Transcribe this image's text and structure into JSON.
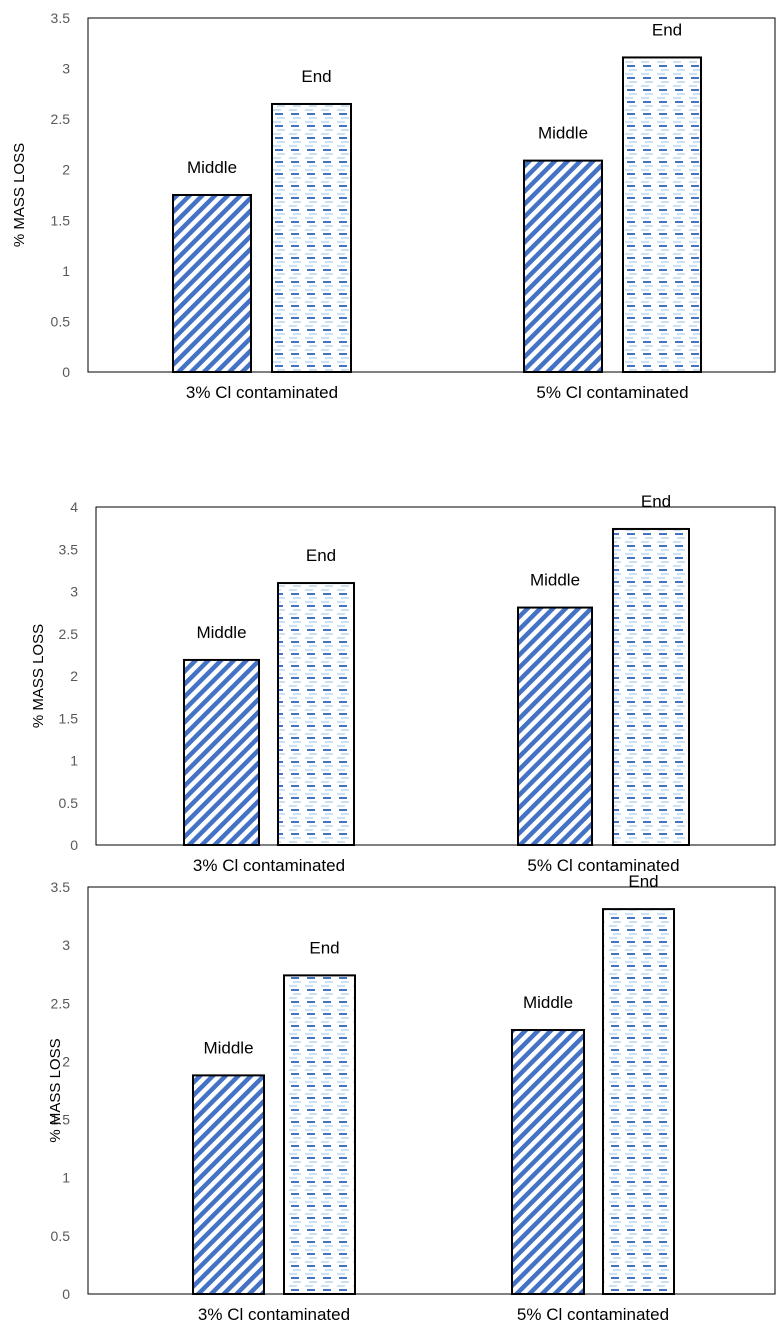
{
  "chart_data": [
    {
      "type": "bar",
      "categories": [
        "3% Cl contaminated",
        "5% Cl contaminated"
      ],
      "series": [
        {
          "name": "Middle",
          "values": [
            1.75,
            2.09
          ]
        },
        {
          "name": "End",
          "values": [
            2.65,
            3.11
          ]
        }
      ],
      "ylabel": "% MASS LOSS",
      "ylim": [
        0,
        3.5
      ],
      "ystep": 0.5,
      "yticks": [
        "0",
        "0.5",
        "1",
        "1.5",
        "2",
        "2.5",
        "3",
        "3.5"
      ],
      "grid": false,
      "legend": "none"
    },
    {
      "type": "bar",
      "categories": [
        "3% Cl contaminated",
        "5% Cl contaminated"
      ],
      "series": [
        {
          "name": "Middle",
          "values": [
            2.19,
            2.81
          ]
        },
        {
          "name": "End",
          "values": [
            3.1,
            3.74
          ]
        }
      ],
      "ylabel": "% MASS LOSS",
      "ylim": [
        0,
        4
      ],
      "ystep": 0.5,
      "yticks": [
        "0",
        "0.5",
        "1",
        "1.5",
        "2",
        "2.5",
        "3",
        "3.5",
        "4"
      ],
      "grid": false,
      "legend": "none"
    },
    {
      "type": "bar",
      "categories": [
        "3% Cl contaminated",
        "5% Cl contaminated"
      ],
      "series": [
        {
          "name": "Middle",
          "values": [
            1.88,
            2.27
          ]
        },
        {
          "name": "End",
          "values": [
            2.74,
            3.31
          ]
        }
      ],
      "ylabel": "% MASS LOSS",
      "ylim": [
        0,
        3.5
      ],
      "ystep": 0.5,
      "yticks": [
        "0",
        "0.5",
        "1",
        "1.5",
        "2",
        "2.5",
        "3",
        "3.5"
      ],
      "grid": false,
      "legend": "none"
    }
  ],
  "colors": {
    "bar_fill": "#ffffff",
    "bar_outline": "#000000",
    "hatch_blue": "#4472c4",
    "dash_light": "#9dc3e6",
    "axis": "#000000",
    "tick_text": "#595959"
  }
}
